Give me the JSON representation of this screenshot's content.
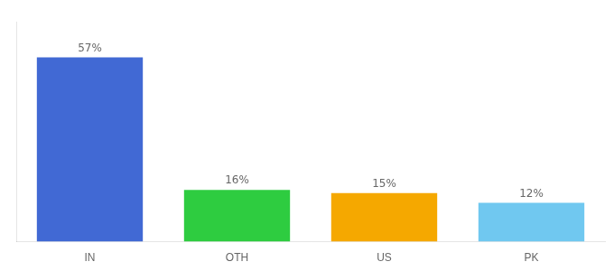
{
  "chart_data": {
    "type": "bar",
    "categories": [
      "IN",
      "OTH",
      "US",
      "PK"
    ],
    "values": [
      57,
      16,
      15,
      12
    ],
    "value_labels": [
      "57%",
      "16%",
      "15%",
      "12%"
    ],
    "colors": [
      "#4169d4",
      "#2ecc40",
      "#f5a800",
      "#70c8f0"
    ],
    "ylim": [
      0,
      68
    ],
    "grid": false,
    "data_labels": true,
    "tick_labels": "x"
  }
}
